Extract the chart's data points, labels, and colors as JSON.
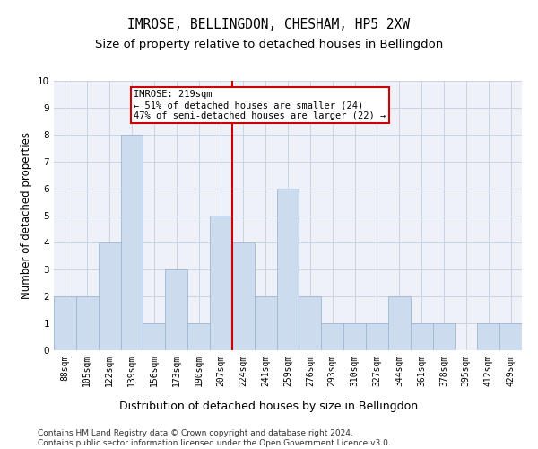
{
  "title": "IMROSE, BELLINGDON, CHESHAM, HP5 2XW",
  "subtitle": "Size of property relative to detached houses in Bellingdon",
  "xlabel": "Distribution of detached houses by size in Bellingdon",
  "ylabel": "Number of detached properties",
  "categories": [
    "88sqm",
    "105sqm",
    "122sqm",
    "139sqm",
    "156sqm",
    "173sqm",
    "190sqm",
    "207sqm",
    "224sqm",
    "241sqm",
    "259sqm",
    "276sqm",
    "293sqm",
    "310sqm",
    "327sqm",
    "344sqm",
    "361sqm",
    "378sqm",
    "395sqm",
    "412sqm",
    "429sqm"
  ],
  "values": [
    2,
    2,
    4,
    8,
    1,
    3,
    1,
    5,
    4,
    2,
    6,
    2,
    1,
    1,
    1,
    2,
    1,
    1,
    0,
    1,
    1
  ],
  "bar_color": "#ccdcee",
  "bar_edgecolor": "#9db8d2",
  "grid_color": "#c8d4e4",
  "background_color": "#eef2f8",
  "vline_x": 7.5,
  "vline_color": "#cc0000",
  "annotation_text": "IMROSE: 219sqm\n← 51% of detached houses are smaller (24)\n47% of semi-detached houses are larger (22) →",
  "annotation_box_edgecolor": "#cc0000",
  "ylim": [
    0,
    10
  ],
  "yticks": [
    0,
    1,
    2,
    3,
    4,
    5,
    6,
    7,
    8,
    9,
    10
  ],
  "footnote": "Contains HM Land Registry data © Crown copyright and database right 2024.\nContains public sector information licensed under the Open Government Licence v3.0.",
  "title_fontsize": 10.5,
  "subtitle_fontsize": 9.5,
  "xlabel_fontsize": 9,
  "ylabel_fontsize": 8.5,
  "tick_fontsize": 7,
  "annot_fontsize": 7.5,
  "footnote_fontsize": 6.5
}
